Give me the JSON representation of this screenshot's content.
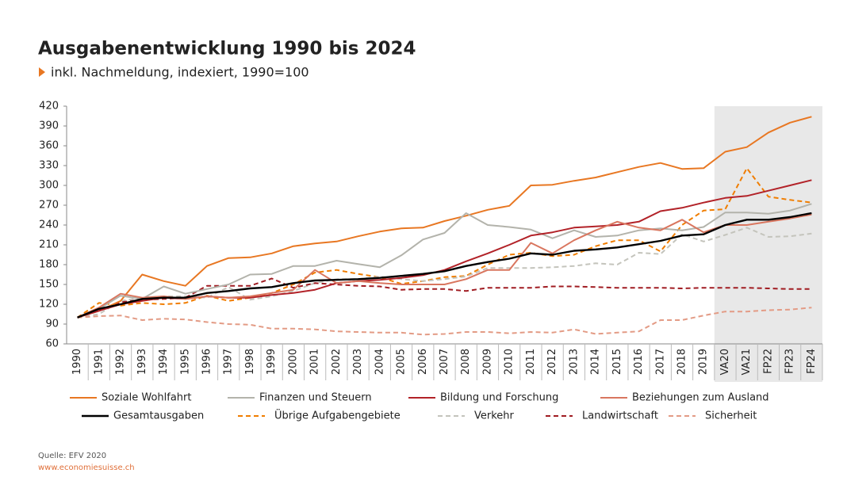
{
  "chart_data": {
    "type": "line",
    "title": "Ausgabenentwicklung 1990 bis 2024",
    "subtitle": "inkl. Nachmeldung, indexiert, 1990=100",
    "source": "Quelle: EFV 2020",
    "credit": "www.economiesuisse.ch",
    "categories": [
      "1990",
      "1991",
      "1992",
      "1993",
      "1994",
      "1995",
      "1996",
      "1997",
      "1998",
      "1999",
      "2000",
      "2001",
      "2002",
      "2003",
      "2004",
      "2005",
      "2006",
      "2007",
      "2008",
      "2009",
      "2010",
      "2011",
      "2012",
      "2013",
      "2014",
      "2015",
      "2016",
      "2017",
      "2018",
      "2019",
      "VA20",
      "VA21",
      "FP22",
      "FP23",
      "FP24"
    ],
    "ylim": [
      60,
      420
    ],
    "yticks": [
      60,
      90,
      120,
      150,
      180,
      210,
      240,
      270,
      300,
      330,
      360,
      390,
      420
    ],
    "series": [
      {
        "name": "Soziale Wohlfahrt",
        "color": "#e87722",
        "dash": false,
        "values": [
          100,
          110,
          125,
          165,
          155,
          148,
          178,
          190,
          191,
          197,
          208,
          212,
          215,
          223,
          230,
          235,
          236,
          246,
          254,
          263,
          269,
          300,
          301,
          307,
          312,
          320,
          328,
          334,
          325,
          326,
          351,
          358,
          380,
          395,
          404
        ]
      },
      {
        "name": "Finanzen und Steuern",
        "color": "#b3b3ab",
        "dash": false,
        "values": [
          100,
          113,
          133,
          128,
          147,
          136,
          143,
          150,
          165,
          166,
          178,
          178,
          186,
          181,
          176,
          194,
          218,
          228,
          258,
          240,
          237,
          233,
          220,
          232,
          222,
          224,
          232,
          235,
          232,
          237,
          259,
          259,
          257,
          262,
          272
        ]
      },
      {
        "name": "Bildung und Forschung",
        "color": "#b22228",
        "dash": false,
        "values": [
          100,
          110,
          120,
          125,
          130,
          128,
          132,
          130,
          130,
          134,
          137,
          142,
          152,
          155,
          157,
          160,
          164,
          172,
          185,
          197,
          210,
          224,
          229,
          236,
          238,
          240,
          245,
          261,
          266,
          274,
          281,
          284,
          292,
          300,
          308
        ]
      },
      {
        "name": "Beziehungen zum Ausland",
        "color": "#d9765f",
        "dash": false,
        "values": [
          100,
          115,
          136,
          130,
          132,
          128,
          132,
          130,
          132,
          137,
          142,
          172,
          152,
          155,
          152,
          150,
          150,
          150,
          158,
          172,
          172,
          213,
          197,
          217,
          232,
          245,
          236,
          232,
          248,
          229,
          240,
          240,
          245,
          250,
          256
        ]
      },
      {
        "name": "Gesamtausgaben",
        "color": "#000000",
        "dash": false,
        "values": [
          100,
          113,
          120,
          128,
          130,
          130,
          137,
          140,
          144,
          146,
          152,
          156,
          157,
          158,
          160,
          163,
          166,
          170,
          178,
          184,
          189,
          197,
          195,
          201,
          203,
          206,
          211,
          216,
          224,
          226,
          240,
          248,
          248,
          252,
          258
        ]
      },
      {
        "name": "Übrige Aufgabengebiete",
        "color": "#f07d00",
        "dash": true,
        "values": [
          100,
          122,
          118,
          122,
          120,
          122,
          133,
          125,
          130,
          137,
          150,
          168,
          172,
          166,
          161,
          151,
          155,
          161,
          163,
          180,
          195,
          198,
          193,
          195,
          208,
          217,
          217,
          200,
          240,
          262,
          264,
          326,
          283,
          278,
          274
        ]
      },
      {
        "name": "Verkehr",
        "color": "#c4c4bc",
        "dash": true,
        "values": [
          100,
          105,
          125,
          130,
          132,
          132,
          130,
          146,
          127,
          132,
          140,
          152,
          158,
          158,
          162,
          158,
          155,
          158,
          162,
          175,
          175,
          175,
          176,
          178,
          182,
          180,
          198,
          196,
          226,
          215,
          225,
          236,
          222,
          223,
          227
        ]
      },
      {
        "name": "Landwirtschaft",
        "color": "#a01c22",
        "dash": true,
        "values": [
          100,
          110,
          123,
          127,
          128,
          130,
          148,
          148,
          148,
          159,
          145,
          152,
          150,
          148,
          147,
          142,
          143,
          143,
          140,
          145,
          145,
          145,
          147,
          147,
          146,
          145,
          145,
          145,
          144,
          145,
          145,
          145,
          144,
          143,
          143
        ]
      },
      {
        "name": "Sicherheit",
        "color": "#e39b85",
        "dash": true,
        "values": [
          100,
          102,
          103,
          96,
          98,
          97,
          93,
          90,
          89,
          83,
          83,
          82,
          79,
          78,
          77,
          77,
          74,
          75,
          78,
          78,
          76,
          78,
          77,
          82,
          75,
          77,
          79,
          96,
          96,
          103,
          109,
          109,
          111,
          112,
          115
        ]
      }
    ]
  }
}
